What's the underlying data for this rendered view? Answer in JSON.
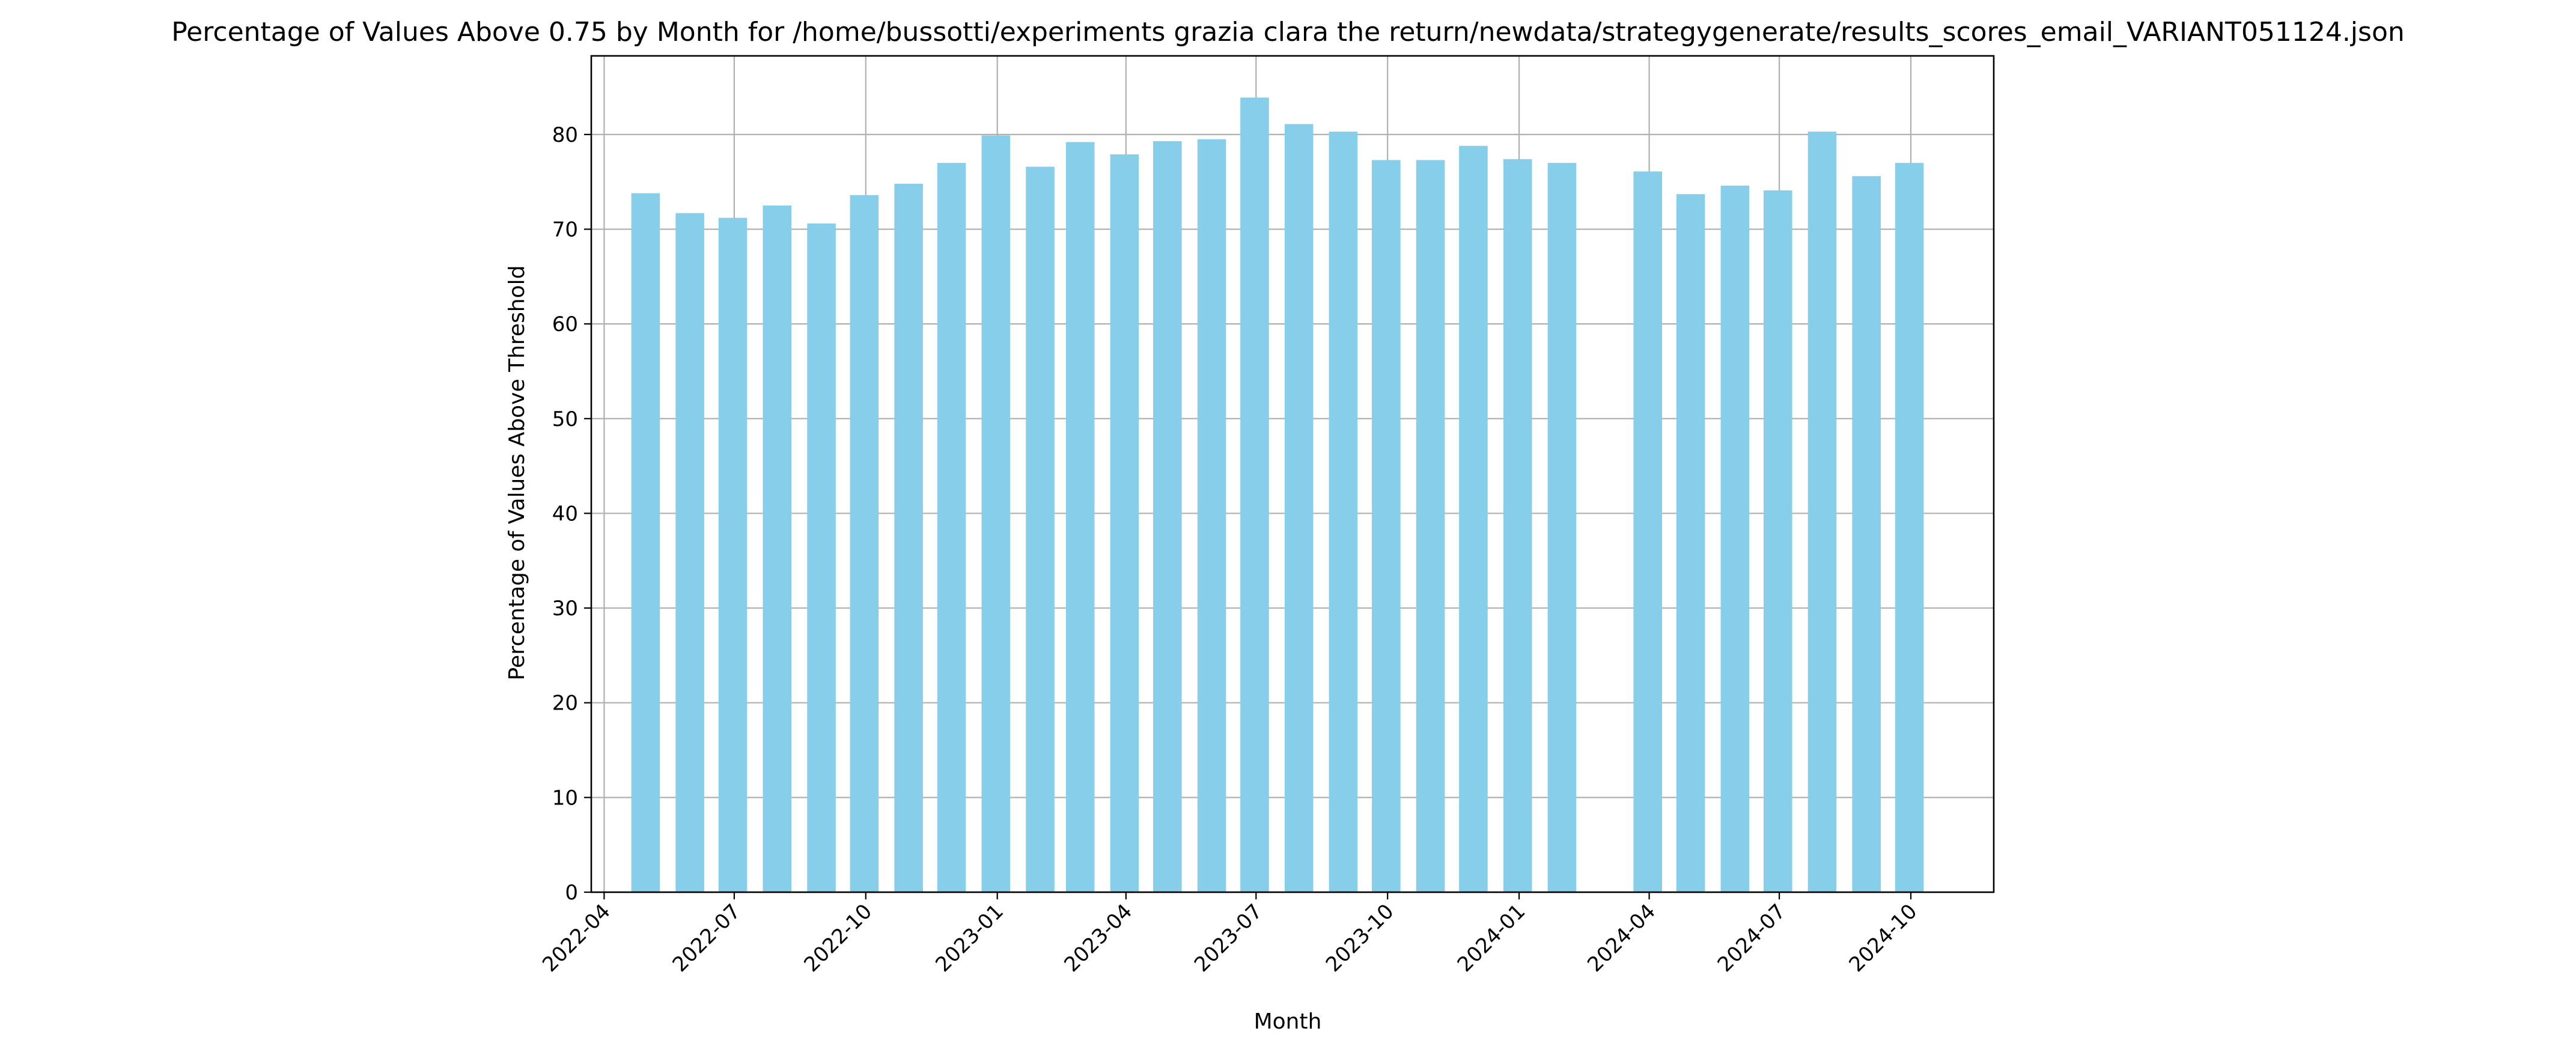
{
  "chart_data": {
    "type": "bar",
    "title": "Percentage of Values Above 0.75 by Month for /home/bussotti/experiments grazia clara the return/newdata/strategygenerate/results_scores_email_VARIANT051124.json",
    "xlabel": "Month",
    "ylabel": "Percentage of Values Above Threshold",
    "ylim": [
      0,
      88.3
    ],
    "x_axis": "date",
    "xlim": [
      "2022-03-23",
      "2024-11-28"
    ],
    "grid": true,
    "bar_color": "#87ceeb",
    "xticks": [
      "2022-04",
      "2022-07",
      "2022-10",
      "2023-01",
      "2023-04",
      "2023-07",
      "2023-10",
      "2024-01",
      "2024-04",
      "2024-07",
      "2024-10"
    ],
    "yticks": [
      "0",
      "10",
      "20",
      "30",
      "40",
      "50",
      "60",
      "70",
      "80"
    ],
    "categories": [
      "2022-04-30",
      "2022-05-31",
      "2022-06-30",
      "2022-07-31",
      "2022-08-31",
      "2022-09-30",
      "2022-10-31",
      "2022-11-30",
      "2022-12-31",
      "2023-01-31",
      "2023-02-28",
      "2023-03-31",
      "2023-04-30",
      "2023-05-31",
      "2023-06-30",
      "2023-07-31",
      "2023-08-31",
      "2023-09-30",
      "2023-10-31",
      "2023-11-30",
      "2023-12-31",
      "2024-01-31",
      "2024-03-31",
      "2024-04-30",
      "2024-05-31",
      "2024-06-30",
      "2024-07-31",
      "2024-08-31",
      "2024-09-30"
    ],
    "values": [
      73.8,
      71.7,
      71.2,
      72.5,
      70.6,
      73.6,
      74.8,
      77.0,
      79.9,
      76.6,
      79.2,
      77.9,
      79.3,
      79.5,
      83.9,
      81.1,
      80.3,
      77.3,
      77.3,
      78.8,
      77.4,
      77.0,
      76.1,
      73.7,
      74.6,
      74.1,
      80.3,
      75.6,
      77.0
    ]
  }
}
